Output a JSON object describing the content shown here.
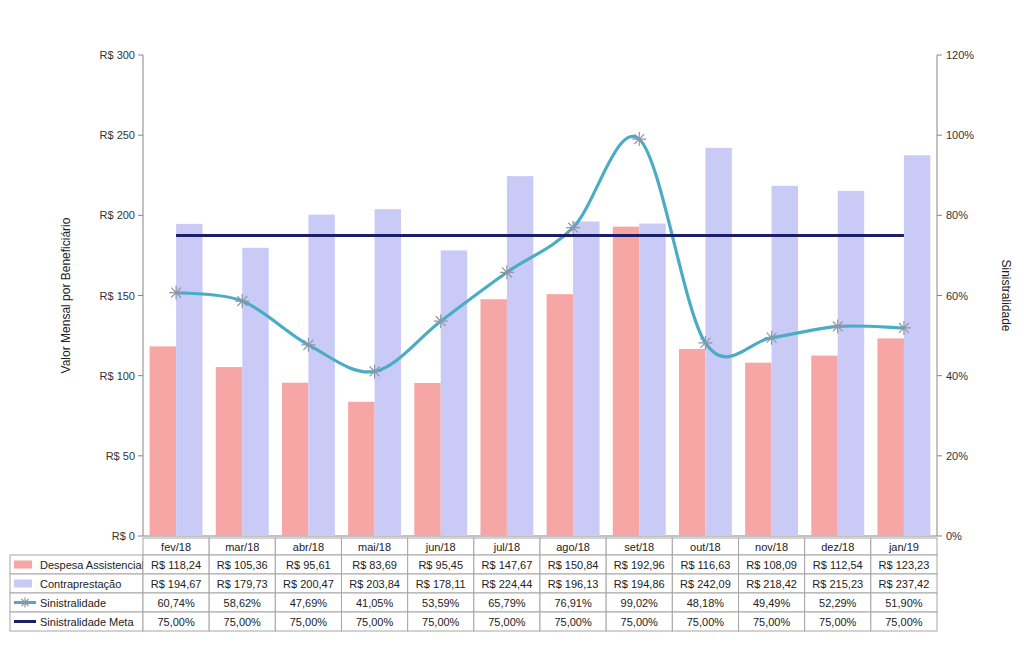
{
  "chart_data": {
    "type": "bar",
    "categories": [
      "fev/18",
      "mar/18",
      "abr/18",
      "mai/18",
      "jun/18",
      "jul/18",
      "ago/18",
      "set/18",
      "out/18",
      "nov/18",
      "dez/18",
      "jan/19"
    ],
    "series": [
      {
        "name": "Despesa Assistencial",
        "type": "bar",
        "color": "#f7a6a6",
        "values": [
          118.24,
          105.36,
          95.61,
          83.69,
          95.45,
          147.67,
          150.84,
          192.96,
          116.63,
          108.09,
          112.54,
          123.23
        ],
        "value_labels": [
          "R$ 118,24",
          "R$ 105,36",
          "R$ 95,61",
          "R$ 83,69",
          "R$ 95,45",
          "R$ 147,67",
          "R$ 150,84",
          "R$ 192,96",
          "R$ 116,63",
          "R$ 108,09",
          "R$ 112,54",
          "R$ 123,23"
        ]
      },
      {
        "name": "Contraprestação",
        "type": "bar",
        "color": "#cacaf7",
        "values": [
          194.67,
          179.73,
          200.47,
          203.84,
          178.11,
          224.44,
          196.13,
          194.86,
          242.09,
          218.42,
          215.23,
          237.42
        ],
        "value_labels": [
          "R$ 194,67",
          "R$ 179,73",
          "R$ 200,47",
          "R$ 203,84",
          "R$ 178,11",
          "R$ 224,44",
          "R$ 196,13",
          "R$ 194,86",
          "R$ 242,09",
          "R$ 218,42",
          "R$ 215,23",
          "R$ 237,42"
        ]
      },
      {
        "name": "Sinistralidade",
        "type": "line",
        "axis": "y2",
        "color": "#4bacc6",
        "marker": "star",
        "line_style": "smooth",
        "values": [
          60.74,
          58.62,
          47.69,
          41.05,
          53.59,
          65.79,
          76.91,
          99.02,
          48.18,
          49.49,
          52.29,
          51.9
        ],
        "value_labels": [
          "60,74%",
          "58,62%",
          "47,69%",
          "41,05%",
          "53,59%",
          "65,79%",
          "76,91%",
          "99,02%",
          "48,18%",
          "49,49%",
          "52,29%",
          "51,90%"
        ]
      },
      {
        "name": "Sinistralidade Meta",
        "type": "line",
        "axis": "y2",
        "color": "#1c1f66",
        "line_style": "solid",
        "values": [
          75,
          75,
          75,
          75,
          75,
          75,
          75,
          75,
          75,
          75,
          75,
          75
        ],
        "value_labels": [
          "75,00%",
          "75,00%",
          "75,00%",
          "75,00%",
          "75,00%",
          "75,00%",
          "75,00%",
          "75,00%",
          "75,00%",
          "75,00%",
          "75,00%",
          "75,00%"
        ]
      }
    ],
    "ylabel": "Valor Mensal por Beneficiário",
    "y2label": "Sinistralidade",
    "ylim": [
      0,
      300
    ],
    "yticks": [
      {
        "value": 0,
        "label": "R$ 0"
      },
      {
        "value": 50,
        "label": "R$ 50"
      },
      {
        "value": 100,
        "label": "R$ 100"
      },
      {
        "value": 150,
        "label": "R$ 150"
      },
      {
        "value": 200,
        "label": "R$ 200"
      },
      {
        "value": 250,
        "label": "R$ 250"
      },
      {
        "value": 300,
        "label": "R$ 300"
      }
    ],
    "y2lim": [
      0,
      120
    ],
    "y2ticks": [
      {
        "value": 0,
        "label": "0%"
      },
      {
        "value": 20,
        "label": "20%"
      },
      {
        "value": 40,
        "label": "40%"
      },
      {
        "value": 60,
        "label": "60%"
      },
      {
        "value": 80,
        "label": "80%"
      },
      {
        "value": 100,
        "label": "100%"
      },
      {
        "value": 120,
        "label": "120%"
      }
    ],
    "grid": false,
    "data_labels": true,
    "legend": "bottom"
  }
}
